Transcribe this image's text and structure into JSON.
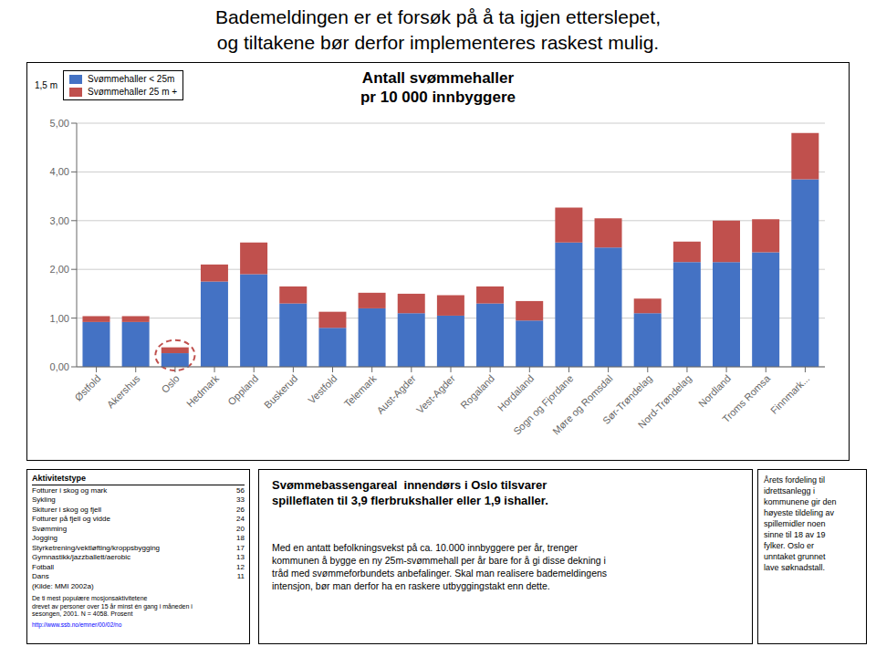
{
  "chart_data": {
    "type": "bar",
    "title": "Antall svømmehaller\npr 10 000 innbyggere",
    "categories": [
      "Østfold",
      "Akershus",
      "Oslo",
      "Hedmark",
      "Oppland",
      "Buskerud",
      "Vestfold",
      "Telemark",
      "Aust-Agder",
      "Vest-Agder",
      "Rogaland",
      "Hordaland",
      "Sogn og Fjordane",
      "Møre og Romsdal",
      "Sør-Trøndelag",
      "Nord-Trøndelag",
      "Nordland",
      "Troms Romsa",
      "Finnmark..."
    ],
    "series": [
      {
        "name": "Svømmehaller < 25m",
        "color": "#4472C4",
        "values": [
          0.92,
          0.92,
          0.28,
          1.75,
          1.9,
          1.3,
          0.8,
          1.2,
          1.1,
          1.05,
          1.3,
          0.95,
          2.55,
          2.45,
          1.1,
          2.15,
          2.15,
          2.35,
          3.85
        ]
      },
      {
        "name": "Svømmehaller 25 m +",
        "color": "#C0504D",
        "values": [
          0.12,
          0.12,
          0.12,
          0.35,
          0.65,
          0.35,
          0.33,
          0.32,
          0.4,
          0.42,
          0.35,
          0.4,
          0.72,
          0.6,
          0.3,
          0.42,
          0.85,
          0.68,
          0.95
        ]
      }
    ],
    "stacked": true,
    "ylim": [
      0,
      5.0
    ],
    "yticks": [
      {
        "value": 0,
        "label": "0,00"
      },
      {
        "value": 1,
        "label": "1,00"
      },
      {
        "value": 2,
        "label": "2,00"
      },
      {
        "value": 3,
        "label": "3,00"
      },
      {
        "value": 4,
        "label": "4,00"
      },
      {
        "value": 5,
        "label": "5,00"
      }
    ],
    "grid": true,
    "legend": "upper left",
    "annotations": {
      "header": [
        "Bademeldingen er et forsøk på å ta igjen etterslepet,",
        "og tiltakene bør derfor implementeres raskest mulig."
      ],
      "legend_prefix": "1,5 m",
      "highlight": {
        "category": "Oslo",
        "color": "#C0504D",
        "line_style": "dashed"
      },
      "table": {
        "rows": [
          [
            "Aktivitetstype",
            null
          ],
          [
            "Fotturer i skog og mark",
            56
          ],
          [
            "Sykling",
            33
          ],
          [
            "Skiturer i skog og fjell",
            26
          ],
          [
            "Fotturer på fjell og vidde",
            24
          ],
          [
            "Svømming",
            20
          ],
          [
            "Jogging",
            18
          ],
          [
            "Styrketrening/vektløfting/kroppsbygging",
            17
          ],
          [
            "Gymnastikk/jazzballett/aerobic",
            13
          ],
          [
            "Fotball",
            12
          ],
          [
            "Dans",
            11
          ],
          [
            "(Kilde: MMI 2002a)",
            null
          ]
        ],
        "note": "De ti mest populære mosjonsaktivitetene\ndrevet av personer over 15 år minst én gang i måneden i\nsesongen, 2001. N = 4058. Prosent",
        "url": "http://www.ssb.no/emner/00/02/no"
      },
      "bottom_bold": "Svømmebassengareal  innendørs i Oslo tilsvarer\nspilleflaten til 3,9 flerbrukshaller eller 1,9 ishaller.",
      "bottom_text": "Med en antatt befolkningsvekst på ca. 10.000 innbyggere per år, trenger\nkommunen å bygge en ny 25m-svømmehall per år bare for å gi disse dekning i\ntråd med svømmeforbundets anbefalinger. Skal man realisere bademeldingens\nintensjon, bør man derfor ha en raskere utbyggingstakt enn dette.",
      "right_text": "Årets fordeling til\nidrettsanlegg i\nkommunene gir den\nhøyeste tildeling av\nspillemidler noen\nsinne til 18 av 19\nfylker. Oslo er\nunntaket grunnet\nlave søknadstall."
    }
  }
}
